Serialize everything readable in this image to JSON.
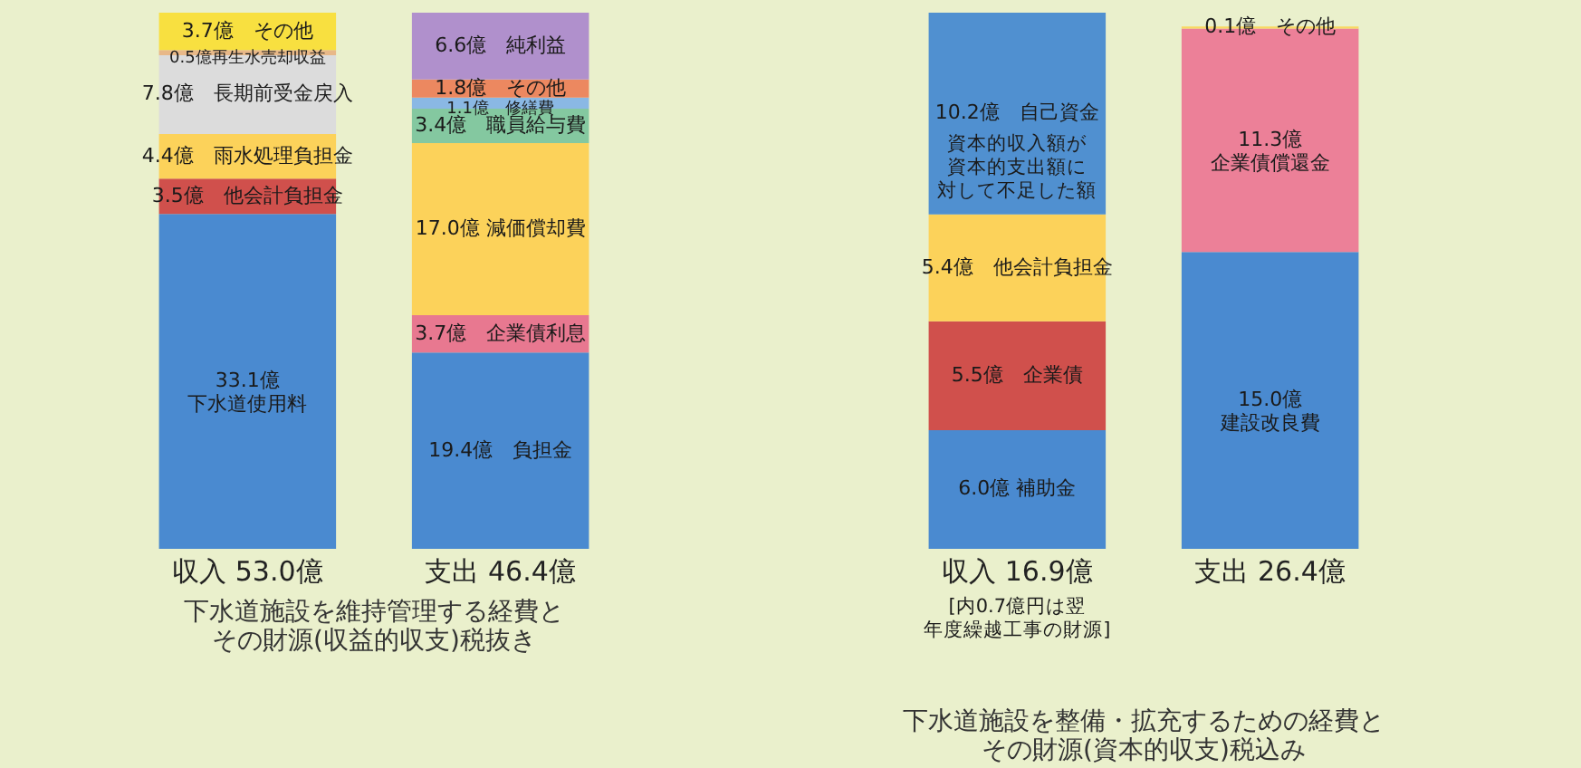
{
  "chart_data": [
    {
      "type": "bar",
      "stacked": true,
      "title": "下水道施設を維持管理する経費と",
      "subtitle": "その財源(収益的収支)税抜き",
      "categories": [
        "収入 53.0億",
        "支出 46.4億"
      ],
      "series": [
        {
          "colors": [
            "#4a8ad0",
            "#4a8ad0"
          ],
          "values": [
            33.1,
            19.4
          ],
          "value_labels": [
            "33.1億下水道使用料",
            "19.4億　負担金"
          ]
        },
        {
          "colors": [
            "#d0504c",
            "#e87890"
          ],
          "values": [
            3.5,
            3.7
          ],
          "value_labels": [
            "3.5億　他会計負担金",
            "3.7億　企業債利息"
          ]
        },
        {
          "colors": [
            "#fcd25a",
            "#fcd25a"
          ],
          "values": [
            4.4,
            17.0
          ],
          "value_labels": [
            "4.4億　雨水処理負担金",
            "17.0億 減価償却費"
          ]
        },
        {
          "colors": [
            "#dcdcdc",
            "#84c8a0"
          ],
          "values": [
            7.8,
            3.4
          ],
          "value_labels": [
            "7.8億　長期前受金戻入",
            "3.4億　職員給与費"
          ]
        },
        {
          "colors": [
            "#e8b888",
            "#8ab8e4"
          ],
          "values": [
            0.5,
            1.1
          ],
          "value_labels": [
            "0.5億再生水売却収益",
            "1.1億　修繕費"
          ]
        },
        {
          "colors": [
            "#f8e040",
            "#ec8860"
          ],
          "values": [
            3.7,
            1.8
          ],
          "value_labels": [
            "3.7億　その他",
            "1.8億　その他"
          ]
        },
        {
          "colors": [
            null,
            "#b090cc"
          ],
          "values": [
            null,
            6.6
          ],
          "value_labels": [
            null,
            "6.6億　純利益"
          ]
        }
      ]
    },
    {
      "type": "bar",
      "stacked": true,
      "title": "下水道施設を整備・拡充するための経費と",
      "subtitle": "その財源(資本的収支)税込み",
      "categories": [
        "収入 16.9億",
        "支出 26.4億"
      ],
      "series": [
        {
          "colors": [
            "#4a8ad0",
            "#4a8ad0"
          ],
          "values": [
            6.0,
            15.0
          ],
          "value_labels": [
            "6.0億 補助金",
            "15.0億建設改良費"
          ]
        },
        {
          "colors": [
            "#d0504c",
            "#ec8098"
          ],
          "values": [
            5.5,
            11.3
          ],
          "value_labels": [
            "5.5億　企業債",
            "11.3億企業債償還金"
          ]
        },
        {
          "colors": [
            "#fcd25a",
            "#f8d860"
          ],
          "values": [
            5.4,
            0.1
          ],
          "value_labels": [
            "5.4億　他会計負担金",
            "0.1億　その他"
          ]
        },
        {
          "colors": [
            "#5090d0",
            null
          ],
          "values": [
            10.2,
            null
          ],
          "value_labels": [
            "10.2億　自己資金",
            null
          ]
        }
      ],
      "annotations": [
        "資本的収入額が資本的支出額に対して不足した額",
        "[内0.7億円は翌年度繰越工事の財源]"
      ]
    }
  ]
}
